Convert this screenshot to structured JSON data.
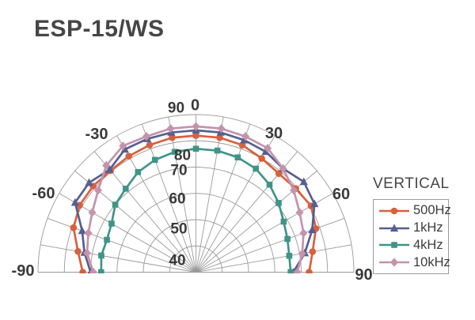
{
  "title": "ESP-15/WS",
  "legend": {
    "title": "VERTICAL",
    "entries": [
      {
        "label": "500Hz",
        "color": "#d7613f",
        "marker": "circle"
      },
      {
        "label": "1kHz",
        "color": "#565f90",
        "marker": "triangle"
      },
      {
        "label": "4kHz",
        "color": "#3f9488",
        "marker": "square"
      },
      {
        "label": "10kHz",
        "color": "#c493ac",
        "marker": "diamond"
      }
    ]
  },
  "colors": {
    "text": "#3a3a3a",
    "grid": "#9a9a9a",
    "background": "#ffffff"
  },
  "chart_data": {
    "type": "line",
    "layout": "polar-semicircle",
    "plane_label": "VERTICAL",
    "title": "ESP-15/WS",
    "angles_deg": [
      -90,
      -80,
      -70,
      -60,
      -50,
      -40,
      -30,
      -20,
      -10,
      0,
      10,
      20,
      30,
      40,
      50,
      60,
      70,
      80,
      90
    ],
    "angle_ticks": [
      "-90",
      "-60",
      "-30",
      "0",
      "30",
      "60",
      "90"
    ],
    "grid": {
      "spoke_step_deg": 10
    },
    "radial_axis": {
      "min": 30,
      "max": 90,
      "rings": [
        40,
        50,
        60,
        70,
        80,
        90
      ],
      "ring_labels": [
        "40",
        "50",
        "60",
        "70",
        "80",
        "90"
      ]
    },
    "series": [
      {
        "name": "500Hz",
        "marker": "circle",
        "color": "#d7613f",
        "values": [
          73,
          75.5,
          79.5,
          81,
          81,
          80.5,
          81,
          81.5,
          82,
          82,
          82,
          81.5,
          80,
          79,
          79.5,
          80.5,
          78.5,
          75,
          73
        ]
      },
      {
        "name": "1kHz",
        "marker": "triangle",
        "color": "#565f90",
        "values": [
          70,
          73,
          76,
          83,
          83,
          81,
          84,
          84,
          84,
          84,
          84,
          83.5,
          83,
          81.5,
          83.5,
          82,
          77,
          72,
          67
        ]
      },
      {
        "name": "4kHz",
        "marker": "square",
        "color": "#3f9488",
        "values": [
          66,
          66.5,
          66,
          67,
          70,
          71.5,
          74,
          75.5,
          76.5,
          77,
          77,
          76.5,
          75.5,
          73.5,
          71,
          68.5,
          67,
          66,
          66
        ]
      },
      {
        "name": "10kHz",
        "marker": "diamond",
        "color": "#c493ac",
        "values": [
          69,
          72,
          73.5,
          75.5,
          78.5,
          83,
          85.5,
          85,
          85.5,
          85.5,
          85.5,
          85,
          84.5,
          81.5,
          78.5,
          75.5,
          73.5,
          71,
          68.5
        ]
      }
    ]
  }
}
